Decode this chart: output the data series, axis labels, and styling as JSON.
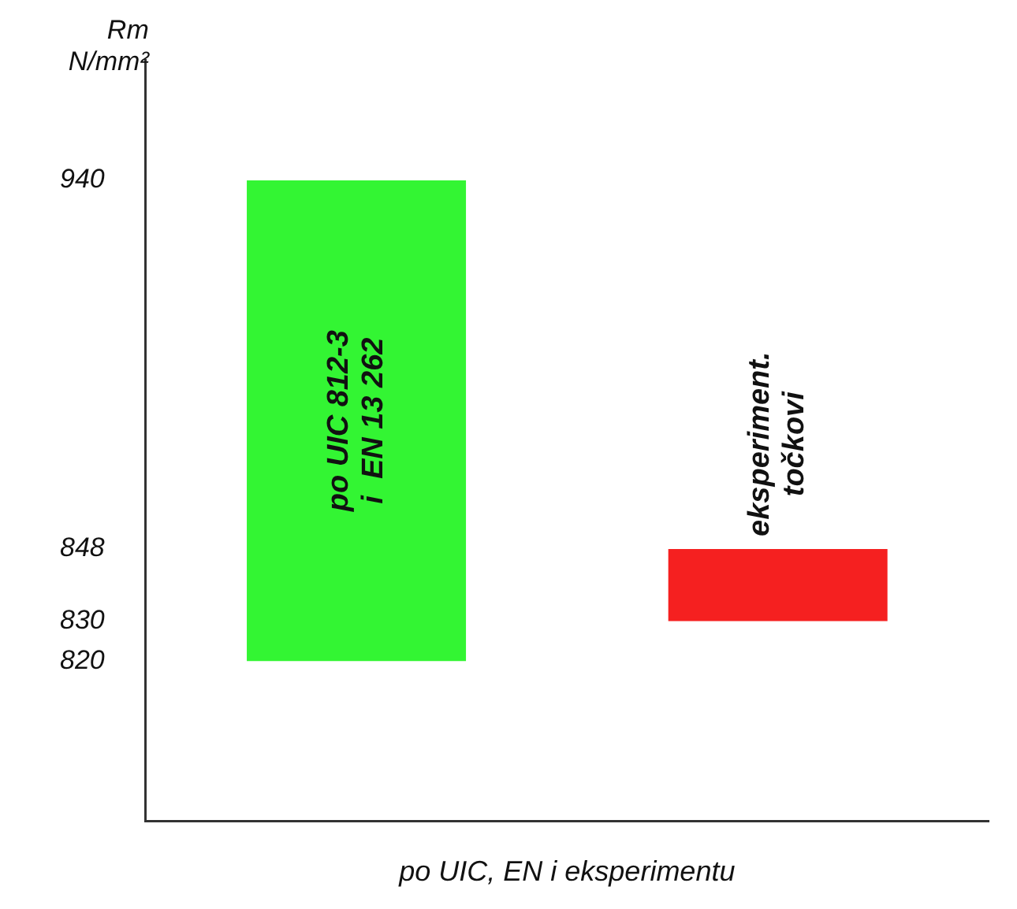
{
  "chart_data": {
    "type": "bar",
    "ylabel": "Rm\nN/mm²",
    "xlabel": "po UIC, EN i eksperimentu",
    "categories": [
      "po UIC 812-3\ni  EN 13 262",
      "eksperiment.\ntočkovi"
    ],
    "base": [
      820,
      830
    ],
    "values": [
      120,
      18
    ],
    "colors": [
      "#33f533",
      "#f52020"
    ],
    "ylim": [
      780,
      970
    ],
    "yticks": [
      820,
      830,
      848,
      940
    ],
    "grid": false,
    "legend": false
  }
}
